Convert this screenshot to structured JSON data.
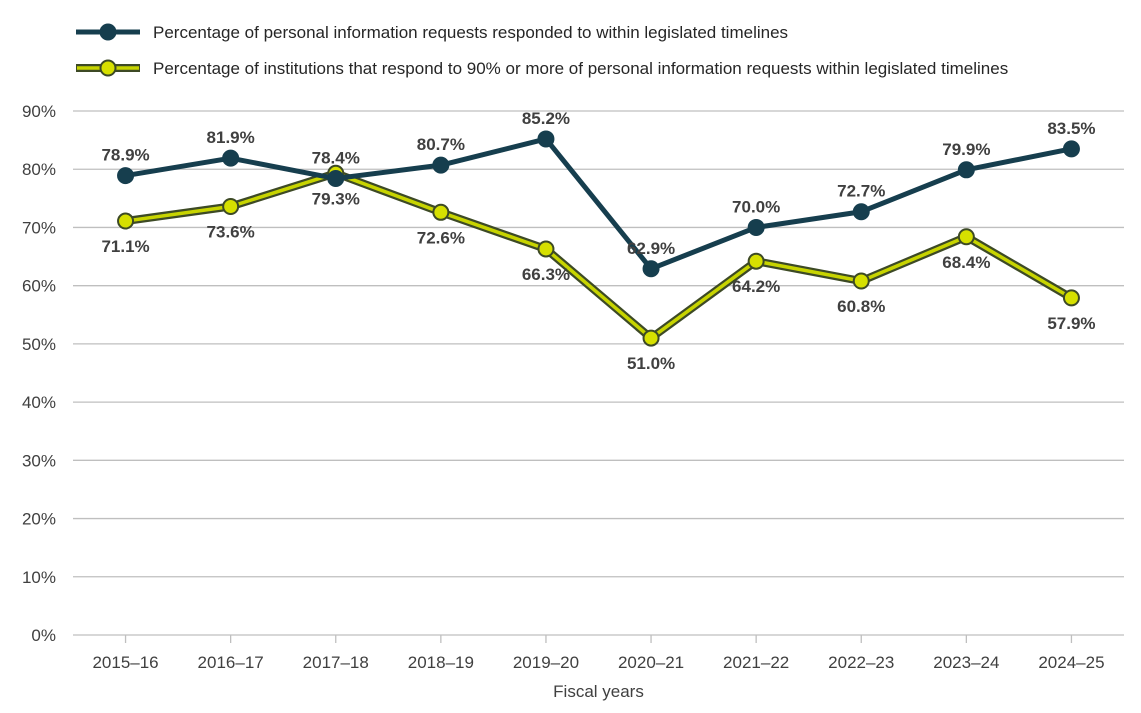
{
  "chart_data": {
    "type": "line",
    "title": "",
    "xlabel": "Fiscal years",
    "ylabel": "",
    "ylim": [
      0,
      90
    ],
    "yticks": [
      0,
      10,
      20,
      30,
      40,
      50,
      60,
      70,
      80,
      90
    ],
    "ytick_labels": [
      "0%",
      "10%",
      "20%",
      "30%",
      "40%",
      "50%",
      "60%",
      "70%",
      "80%",
      "90%"
    ],
    "grid": true,
    "legend_position": "top-left",
    "categories": [
      "2015–16",
      "2016–17",
      "2017–18",
      "2018–19",
      "2019–20",
      "2020–21",
      "2021–22",
      "2022–23",
      "2023–24",
      "2024–25"
    ],
    "series": [
      {
        "name": "Percentage of personal information requests responded to within legislated timelines",
        "values": [
          78.9,
          81.9,
          78.4,
          80.7,
          85.2,
          62.9,
          70.0,
          72.7,
          79.9,
          83.5
        ],
        "labels": [
          "78.9%",
          "81.9%",
          "78.4%",
          "80.7%",
          "85.2%",
          "62.9%",
          "70.0%",
          "72.7%",
          "79.9%",
          "83.5%"
        ],
        "label_side": [
          "above",
          "above",
          "above",
          "above",
          "above",
          "above",
          "above",
          "above",
          "above",
          "above"
        ],
        "line_color": "#163e4e",
        "marker_fill": "#163e4e",
        "marker_stroke": "#163e4e"
      },
      {
        "name": "Percentage of institutions that respond to 90% or more of personal information requests within legislated timelines",
        "values": [
          71.1,
          73.6,
          79.3,
          72.6,
          66.3,
          51.0,
          64.2,
          60.8,
          68.4,
          57.9
        ],
        "labels": [
          "71.1%",
          "73.6%",
          "79.3%",
          "72.6%",
          "66.3%",
          "51.0%",
          "64.2%",
          "60.8%",
          "68.4%",
          "57.9%"
        ],
        "label_side": [
          "below",
          "below",
          "below",
          "below",
          "below",
          "below",
          "below",
          "below",
          "below",
          "below"
        ],
        "line_color": "#c7d400",
        "line_outline": "#3d4a25",
        "marker_fill": "#d6e000",
        "marker_stroke": "#3d4a25"
      }
    ]
  },
  "colors": {
    "gridline": "#bfbfbf",
    "axis": "#bfbfbf",
    "text": "#404040"
  }
}
